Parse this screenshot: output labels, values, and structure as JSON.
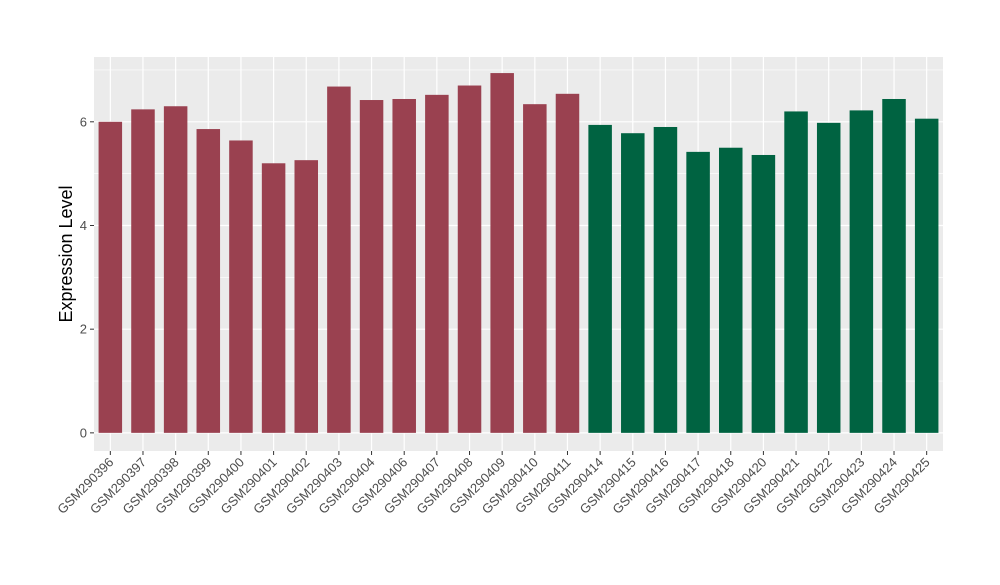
{
  "chart_data": {
    "type": "bar",
    "title": "",
    "xlabel": "",
    "ylabel": "Expression Level",
    "ylim": [
      -0.35,
      7.25
    ],
    "yticks": [
      0,
      2,
      4,
      6
    ],
    "grid": true,
    "legend": "none",
    "categories": [
      "GSM290396",
      "GSM290397",
      "GSM290398",
      "GSM290399",
      "GSM290400",
      "GSM290401",
      "GSM290402",
      "GSM290403",
      "GSM290404",
      "GSM290406",
      "GSM290407",
      "GSM290408",
      "GSM290409",
      "GSM290410",
      "GSM290411",
      "GSM290414",
      "GSM290415",
      "GSM290416",
      "GSM290417",
      "GSM290418",
      "GSM290420",
      "GSM290421",
      "GSM290422",
      "GSM290423",
      "GSM290424",
      "GSM290425"
    ],
    "values": [
      6.0,
      6.24,
      6.3,
      5.86,
      5.64,
      5.2,
      5.26,
      6.68,
      6.42,
      6.44,
      6.52,
      6.7,
      6.94,
      6.34,
      6.54,
      5.94,
      5.78,
      5.9,
      5.42,
      5.5,
      5.36,
      6.2,
      5.98,
      6.22,
      6.44,
      6.06
    ],
    "groups": [
      0,
      0,
      0,
      0,
      0,
      0,
      0,
      0,
      0,
      0,
      0,
      0,
      0,
      0,
      0,
      1,
      1,
      1,
      1,
      1,
      1,
      1,
      1,
      1,
      1,
      1
    ],
    "colors": {
      "group_1": "#9a4150",
      "group_2": "#006341",
      "panel_bg": "#ebebeb",
      "grid": "#ffffff",
      "axis_text": "#4d4d4d"
    }
  }
}
